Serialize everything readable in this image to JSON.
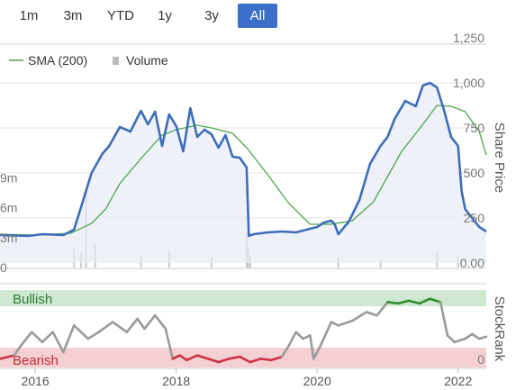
{
  "range_buttons": [
    {
      "label": "1m",
      "active": false
    },
    {
      "label": "3m",
      "active": false
    },
    {
      "label": "YTD",
      "active": false
    },
    {
      "label": "1y",
      "active": false
    },
    {
      "label": "3y",
      "active": false
    },
    {
      "label": "All",
      "active": true
    }
  ],
  "colors": {
    "price": "#3d6db8",
    "sma": "#4ca64c",
    "volume": "#c8c8c8",
    "bullish_band": "#cfe8d2",
    "bearish_band": "#f5d0d2",
    "rank_neutral": "#9a9a9a",
    "rank_bull": "#2e8b2e",
    "rank_bear": "#cc3344",
    "accent_button": "#3b6fc9"
  },
  "chart_data": [
    {
      "type": "line",
      "title": "",
      "ylabel": "Share Price",
      "ylim": [
        0,
        1250
      ],
      "yticks": [
        "1,250",
        "1,000",
        "750",
        "500",
        "250",
        "0.00"
      ],
      "xlim": [
        2015.5,
        2022.4
      ],
      "xticks": [
        "2016",
        "2018",
        "2020",
        "2022"
      ],
      "legend": {
        "position": "top-left",
        "entries": [
          "SMA (200)",
          "Volume"
        ]
      },
      "grid": "horizontal",
      "series": [
        {
          "name": "",
          "kind": "price",
          "x": [
            2015.5,
            2015.9,
            2016.1,
            2016.4,
            2016.55,
            2016.65,
            2016.8,
            2016.95,
            2017.05,
            2017.2,
            2017.35,
            2017.5,
            2017.6,
            2017.7,
            2017.8,
            2017.9,
            2018.0,
            2018.1,
            2018.2,
            2018.3,
            2018.4,
            2018.5,
            2018.6,
            2018.7,
            2018.8,
            2018.9,
            2019.0,
            2019.03,
            2019.1,
            2019.3,
            2019.5,
            2019.7,
            2019.9,
            2020.0,
            2020.1,
            2020.2,
            2020.25,
            2020.3,
            2020.45,
            2020.6,
            2020.75,
            2020.9,
            2021.0,
            2021.1,
            2021.25,
            2021.4,
            2021.5,
            2021.6,
            2021.7,
            2021.8,
            2021.9,
            2022.0,
            2022.05,
            2022.1,
            2022.2,
            2022.3,
            2022.4
          ],
          "values": [
            155,
            150,
            160,
            155,
            185,
            310,
            500,
            605,
            650,
            755,
            730,
            845,
            770,
            840,
            650,
            825,
            760,
            620,
            860,
            700,
            740,
            715,
            640,
            710,
            590,
            585,
            530,
            150,
            160,
            170,
            175,
            170,
            190,
            200,
            225,
            235,
            215,
            160,
            230,
            350,
            550,
            650,
            700,
            800,
            900,
            870,
            985,
            1000,
            975,
            850,
            700,
            650,
            400,
            300,
            250,
            200,
            175
          ]
        },
        {
          "name": "SMA (200)",
          "kind": "sma",
          "x": [
            2015.5,
            2016.0,
            2016.5,
            2016.8,
            2017.0,
            2017.2,
            2017.5,
            2017.8,
            2018.0,
            2018.3,
            2018.5,
            2018.8,
            2019.0,
            2019.3,
            2019.6,
            2019.9,
            2020.2,
            2020.5,
            2020.8,
            2021.0,
            2021.2,
            2021.5,
            2021.7,
            2021.9,
            2022.1,
            2022.3,
            2022.4
          ],
          "values": [
            160,
            155,
            165,
            220,
            300,
            440,
            580,
            710,
            740,
            765,
            750,
            720,
            640,
            490,
            330,
            215,
            215,
            235,
            340,
            480,
            620,
            770,
            875,
            870,
            840,
            730,
            600
          ]
        },
        {
          "name": "Volume",
          "kind": "volume",
          "ylim": [
            0,
            14
          ],
          "yticks": [
            "9m",
            "6m",
            "3m",
            "0"
          ],
          "x": [
            2016.55,
            2016.65,
            2016.72,
            2016.85,
            2017.5,
            2017.9,
            2018.5,
            2019.0,
            2019.02,
            2019.05,
            2020.3,
            2020.9,
            2021.7,
            2022.0
          ],
          "values": [
            2.0,
            1.5,
            7.5,
            2.5,
            1.3,
            1.8,
            1.0,
            3.5,
            2.0,
            1.2,
            1.0,
            0.8,
            1.6,
            1.0
          ]
        }
      ]
    },
    {
      "type": "line",
      "title": "",
      "ylabel": "StockRank",
      "ylim": [
        0,
        100
      ],
      "yticks": [
        "0"
      ],
      "bands": [
        "Bullish",
        "Bearish"
      ],
      "series": [
        {
          "name": "",
          "kind": "stockrank",
          "x": [
            2015.5,
            2015.7,
            2015.8,
            2015.95,
            2016.1,
            2016.25,
            2016.4,
            2016.55,
            2016.75,
            2016.9,
            2017.1,
            2017.3,
            2017.45,
            2017.55,
            2017.7,
            2017.85,
            2017.95,
            2018.05,
            2018.15,
            2018.3,
            2018.45,
            2018.6,
            2018.75,
            2018.9,
            2019.05,
            2019.2,
            2019.35,
            2019.5,
            2019.6,
            2019.7,
            2019.8,
            2019.9,
            2019.95,
            2020.05,
            2020.2,
            2020.3,
            2020.5,
            2020.7,
            2020.85,
            2021.0,
            2021.15,
            2021.3,
            2021.45,
            2021.6,
            2021.75,
            2021.85,
            2021.95,
            2022.1,
            2022.2,
            2022.3,
            2022.4
          ],
          "values": [
            5,
            10,
            25,
            45,
            30,
            45,
            15,
            55,
            35,
            45,
            60,
            45,
            65,
            50,
            70,
            50,
            5,
            10,
            3,
            10,
            5,
            0,
            5,
            8,
            0,
            5,
            3,
            8,
            25,
            45,
            35,
            40,
            5,
            25,
            60,
            55,
            62,
            75,
            70,
            90,
            88,
            92,
            88,
            95,
            90,
            40,
            30,
            35,
            42,
            35,
            38
          ]
        }
      ]
    }
  ]
}
